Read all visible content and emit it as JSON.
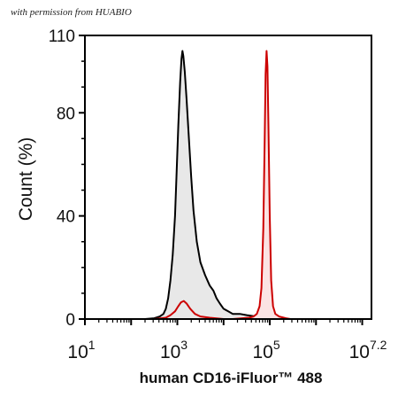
{
  "watermark": "with permission from HUABIO",
  "chart_data": {
    "type": "area",
    "title": "",
    "xlabel": "human CD16-iFluor™ 488",
    "ylabel": "Count  (%)",
    "xscale": "log",
    "xlim": [
      1,
      7.2
    ],
    "ylim": [
      0,
      110
    ],
    "y_ticks": [
      0,
      40,
      80,
      110
    ],
    "x_ticks": [
      {
        "base": "10",
        "exp": "1",
        "value": 1
      },
      {
        "base": "10",
        "exp": "3",
        "value": 3
      },
      {
        "base": "10",
        "exp": "5",
        "value": 5
      },
      {
        "base": "10",
        "exp": "7.2",
        "value": 7.2
      }
    ],
    "series": [
      {
        "color": "#000000",
        "fill": "#e8e8e8",
        "points": [
          [
            2.3,
            0
          ],
          [
            2.5,
            0.3
          ],
          [
            2.62,
            1
          ],
          [
            2.7,
            2
          ],
          [
            2.75,
            4
          ],
          [
            2.8,
            8
          ],
          [
            2.85,
            15
          ],
          [
            2.9,
            25
          ],
          [
            2.95,
            40
          ],
          [
            2.98,
            55
          ],
          [
            3.02,
            75
          ],
          [
            3.06,
            92
          ],
          [
            3.09,
            101
          ],
          [
            3.11,
            104
          ],
          [
            3.13,
            102
          ],
          [
            3.16,
            96
          ],
          [
            3.2,
            85
          ],
          [
            3.25,
            70
          ],
          [
            3.3,
            55
          ],
          [
            3.35,
            42
          ],
          [
            3.42,
            30
          ],
          [
            3.5,
            22
          ],
          [
            3.6,
            17
          ],
          [
            3.7,
            13
          ],
          [
            3.78,
            11
          ],
          [
            3.85,
            8
          ],
          [
            3.92,
            6
          ],
          [
            4.0,
            4
          ],
          [
            4.1,
            3
          ],
          [
            4.2,
            2
          ],
          [
            4.35,
            2
          ],
          [
            4.5,
            1.5
          ],
          [
            4.7,
            1
          ],
          [
            5.0,
            0.5
          ],
          [
            5.4,
            0
          ]
        ]
      },
      {
        "color": "#cc0000",
        "fill": "#fbe3e3",
        "points": [
          [
            4.2,
            0
          ],
          [
            4.55,
            0.5
          ],
          [
            4.65,
            1
          ],
          [
            4.72,
            2
          ],
          [
            4.78,
            5
          ],
          [
            4.82,
            12
          ],
          [
            4.86,
            35
          ],
          [
            4.89,
            70
          ],
          [
            4.91,
            95
          ],
          [
            4.93,
            104
          ],
          [
            4.95,
            98
          ],
          [
            4.97,
            75
          ],
          [
            5.0,
            40
          ],
          [
            5.03,
            15
          ],
          [
            5.07,
            5
          ],
          [
            5.12,
            2
          ],
          [
            5.2,
            1
          ],
          [
            5.35,
            0.3
          ],
          [
            5.45,
            0
          ]
        ]
      },
      {
        "color": "#cc0000",
        "fill": "none",
        "points": [
          [
            2.5,
            0
          ],
          [
            2.75,
            0.5
          ],
          [
            2.85,
            1.5
          ],
          [
            2.95,
            3
          ],
          [
            3.02,
            5
          ],
          [
            3.08,
            6.5
          ],
          [
            3.14,
            7
          ],
          [
            3.2,
            6
          ],
          [
            3.28,
            4
          ],
          [
            3.38,
            2
          ],
          [
            3.5,
            1
          ],
          [
            3.7,
            0.5
          ],
          [
            4.0,
            0
          ]
        ]
      }
    ]
  }
}
